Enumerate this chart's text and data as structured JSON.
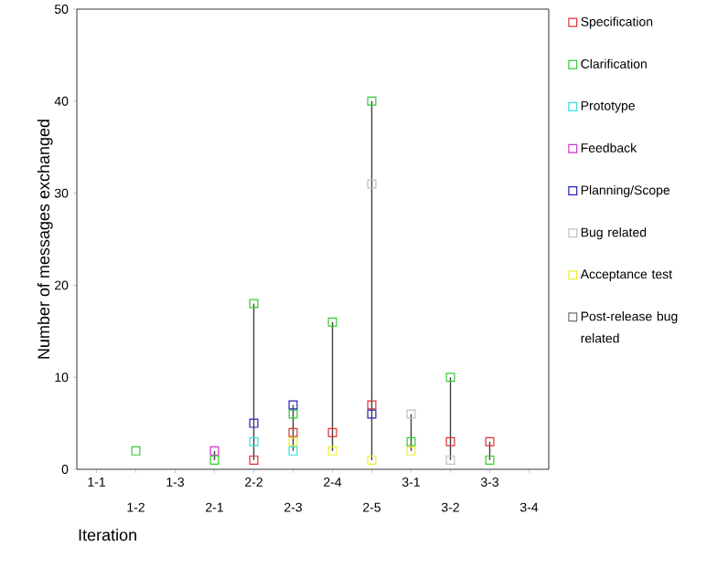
{
  "chart_data": {
    "type": "scatter",
    "xlabel": "Iteration",
    "ylabel": "Number of messages exchanged",
    "categories": [
      "1-1",
      "1-2",
      "1-3",
      "2-1",
      "2-2",
      "2-3",
      "2-4",
      "2-5",
      "3-1",
      "3-2",
      "3-3",
      "3-4"
    ],
    "ylim": [
      0,
      50
    ],
    "yticks": [
      0,
      10,
      20,
      30,
      40,
      50
    ],
    "marker": "square",
    "legend": "right",
    "series": [
      {
        "name": "Specification",
        "color": "#e03030",
        "values": [
          null,
          null,
          null,
          null,
          1,
          4,
          4,
          7,
          null,
          3,
          3,
          null
        ]
      },
      {
        "name": "Clarification",
        "color": "#33cc33",
        "values": [
          null,
          2,
          null,
          1,
          18,
          6,
          16,
          40,
          3,
          10,
          1,
          null
        ]
      },
      {
        "name": "Prototype",
        "color": "#33dddd",
        "values": [
          null,
          null,
          null,
          null,
          3,
          2,
          null,
          null,
          null,
          null,
          null,
          null
        ]
      },
      {
        "name": "Feedback",
        "color": "#cc33cc",
        "values": [
          null,
          null,
          null,
          2,
          null,
          null,
          null,
          null,
          null,
          null,
          null,
          null
        ]
      },
      {
        "name": "Planning/Scope",
        "color": "#2222bb",
        "values": [
          null,
          null,
          null,
          null,
          5,
          7,
          null,
          6,
          null,
          null,
          null,
          null
        ]
      },
      {
        "name": "Bug related",
        "color": "#c0c0c0",
        "values": [
          null,
          null,
          null,
          null,
          null,
          null,
          null,
          31,
          6,
          1,
          null,
          null
        ]
      },
      {
        "name": "Acceptance test",
        "color": "#eeee30",
        "values": [
          null,
          null,
          null,
          null,
          null,
          3,
          2,
          1,
          2,
          null,
          null,
          null
        ]
      },
      {
        "name": "Post-release bug related",
        "color": "#707070",
        "values": [
          null,
          null,
          null,
          null,
          null,
          null,
          null,
          null,
          null,
          null,
          null,
          null
        ]
      }
    ]
  }
}
